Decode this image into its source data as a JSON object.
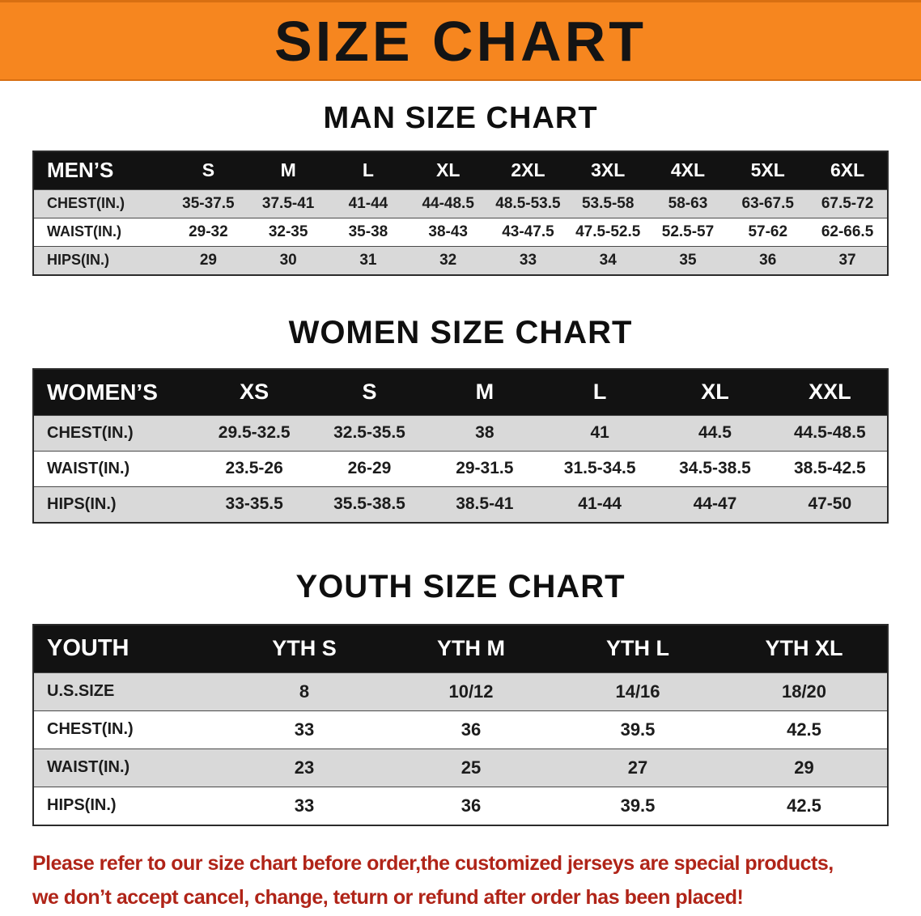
{
  "banner": {
    "title": "SIZE CHART",
    "bg_color": "#F6861F"
  },
  "men": {
    "heading": "MAN SIZE CHART",
    "table": {
      "header": [
        "MEN’S",
        "S",
        "M",
        "L",
        "XL",
        "2XL",
        "3XL",
        "4XL",
        "5XL",
        "6XL"
      ],
      "rows": [
        {
          "label": "CHEST(IN.)",
          "values": [
            "35-37.5",
            "37.5-41",
            "41-44",
            "44-48.5",
            "48.5-53.5",
            "53.5-58",
            "58-63",
            "63-67.5",
            "67.5-72"
          ]
        },
        {
          "label": "WAIST(IN.)",
          "values": [
            "29-32",
            "32-35",
            "35-38",
            "38-43",
            "43-47.5",
            "47.5-52.5",
            "52.5-57",
            "57-62",
            "62-66.5"
          ]
        },
        {
          "label": "HIPS(IN.)",
          "values": [
            "29",
            "30",
            "31",
            "32",
            "33",
            "34",
            "35",
            "36",
            "37"
          ]
        }
      ]
    }
  },
  "women": {
    "heading": "WOMEN SIZE CHART",
    "table": {
      "header": [
        "WOMEN’S",
        "XS",
        "S",
        "M",
        "L",
        "XL",
        "XXL"
      ],
      "rows": [
        {
          "label": "CHEST(IN.)",
          "values": [
            "29.5-32.5",
            "32.5-35.5",
            "38",
            "41",
            "44.5",
            "44.5-48.5"
          ]
        },
        {
          "label": "WAIST(IN.)",
          "values": [
            "23.5-26",
            "26-29",
            "29-31.5",
            "31.5-34.5",
            "34.5-38.5",
            "38.5-42.5"
          ]
        },
        {
          "label": "HIPS(IN.)",
          "values": [
            "33-35.5",
            "35.5-38.5",
            "38.5-41",
            "41-44",
            "44-47",
            "47-50"
          ]
        }
      ]
    }
  },
  "youth": {
    "heading": "YOUTH SIZE CHART",
    "table": {
      "header": [
        "YOUTH",
        "YTH S",
        "YTH M",
        "YTH L",
        "YTH XL"
      ],
      "rows": [
        {
          "label": "U.S.SIZE",
          "values": [
            "8",
            "10/12",
            "14/16",
            "18/20"
          ]
        },
        {
          "label": "CHEST(IN.)",
          "values": [
            "33",
            "36",
            "39.5",
            "42.5"
          ]
        },
        {
          "label": "WAIST(IN.)",
          "values": [
            "23",
            "25",
            "27",
            "29"
          ]
        },
        {
          "label": "HIPS(IN.)",
          "values": [
            "33",
            "36",
            "39.5",
            "42.5"
          ]
        }
      ]
    }
  },
  "disclaimer": {
    "line1": "Please refer to our size chart before order,the customized jerseys are special products,",
    "line2": "we don’t accept cancel, change, teturn or refund after order has been placed!",
    "color": "#B02418"
  }
}
